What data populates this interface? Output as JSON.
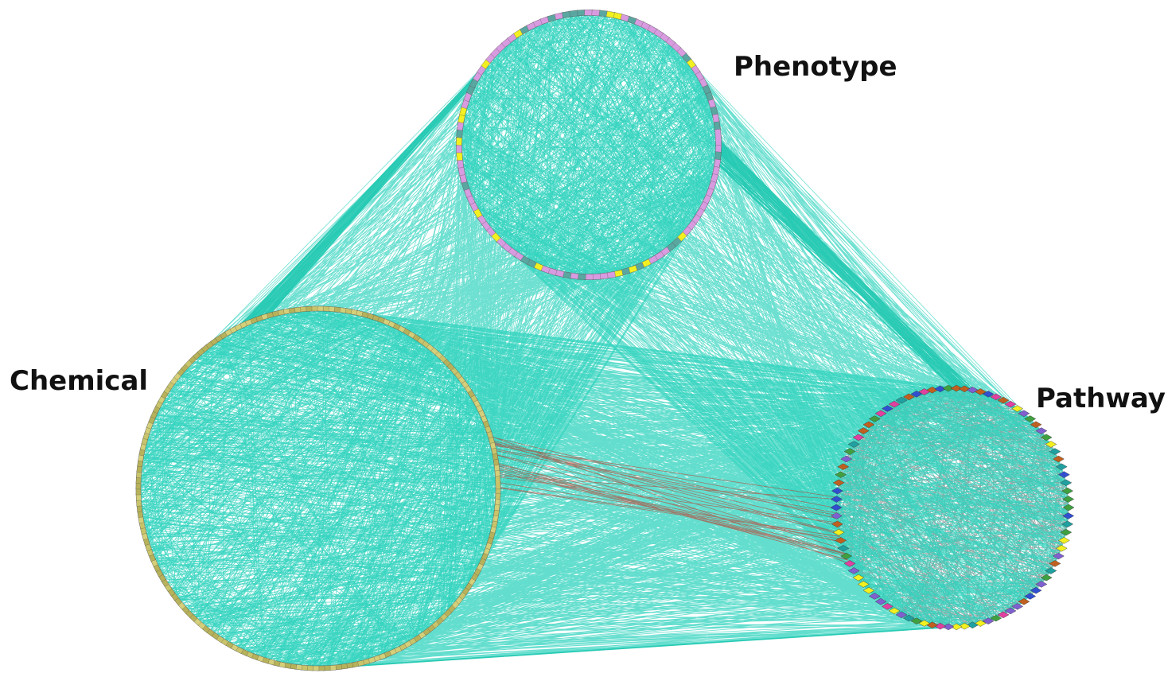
{
  "groups": [
    {
      "label": "Phenotype"
    },
    {
      "label": "Chemical"
    },
    {
      "label": "Pathway"
    }
  ]
}
